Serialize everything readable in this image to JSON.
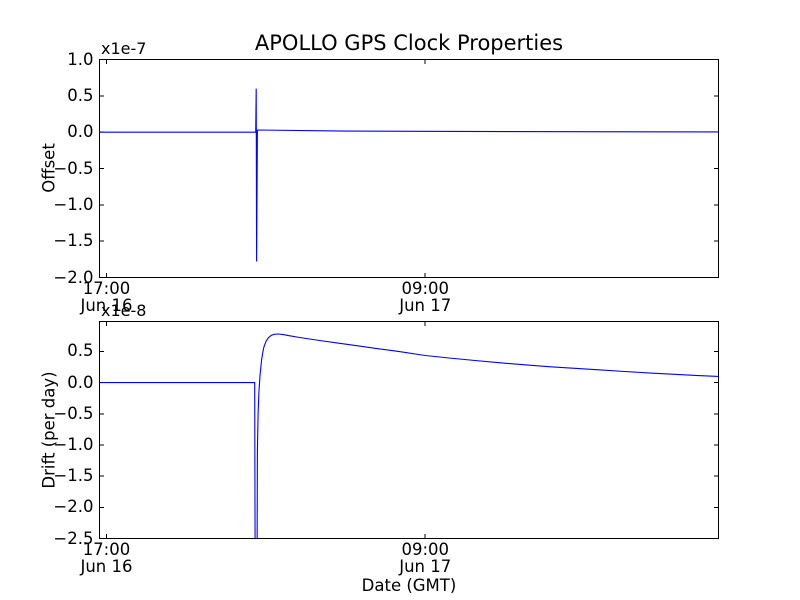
{
  "figure": {
    "background": "#ffffff",
    "axis_color": "#000000"
  },
  "chart_data": [
    {
      "type": "line",
      "title": "APOLLO GPS Clock Properties",
      "ylabel": "Offset",
      "xlabel": "",
      "scale_label": "x1e-7",
      "line_color": "#0000ff",
      "grid": false,
      "legend": "none",
      "ylim": [
        -2.0,
        1.0
      ],
      "xlim_hours": [
        -0.35,
        30.72
      ],
      "x_unit": "hours since 17:00 Jun 16 (GMT)",
      "y_ticks": [
        {
          "v": 1.0,
          "label": "1.0"
        },
        {
          "v": 0.5,
          "label": "0.5"
        },
        {
          "v": 0.0,
          "label": "0.0"
        },
        {
          "v": -0.5,
          "label": "−0.5"
        },
        {
          "v": -1.0,
          "label": "−1.0"
        },
        {
          "v": -1.5,
          "label": "−1.5"
        },
        {
          "v": -2.0,
          "label": "−2.0"
        }
      ],
      "x_ticks": [
        {
          "hour": 0,
          "time": "17:00",
          "date": "Jun 16"
        },
        {
          "hour": 16,
          "time": "09:00",
          "date": "Jun 17"
        }
      ],
      "series": [
        {
          "name": "offset",
          "points": [
            [
              -0.35,
              0
            ],
            [
              7.49,
              0
            ],
            [
              7.515,
              0.6
            ],
            [
              7.535,
              -1.78
            ],
            [
              7.575,
              0.03
            ],
            [
              12,
              0.015
            ],
            [
              20,
              0.008
            ],
            [
              30.72,
              0.004
            ]
          ]
        }
      ]
    },
    {
      "type": "line",
      "title": "",
      "ylabel": "Drift (per day)",
      "xlabel": "Date (GMT)",
      "scale_label": "x1e-8",
      "line_color": "#0000ff",
      "grid": false,
      "legend": "none",
      "ylim": [
        -2.5,
        0.98
      ],
      "xlim_hours": [
        -0.35,
        30.72
      ],
      "x_unit": "hours since 17:00 Jun 16 (GMT)",
      "y_ticks": [
        {
          "v": 0.5,
          "label": "0.5"
        },
        {
          "v": 0.0,
          "label": "0.0"
        },
        {
          "v": -0.5,
          "label": "−0.5"
        },
        {
          "v": -1.0,
          "label": "−1.0"
        },
        {
          "v": -1.5,
          "label": "−1.5"
        },
        {
          "v": -2.0,
          "label": "−2.0"
        },
        {
          "v": -2.5,
          "label": "−2.5"
        }
      ],
      "x_ticks": [
        {
          "hour": 0,
          "time": "17:00",
          "date": "Jun 16"
        },
        {
          "hour": 16,
          "time": "09:00",
          "date": "Jun 17"
        }
      ],
      "series": [
        {
          "name": "drift",
          "points": [
            [
              -0.35,
              0
            ],
            [
              7.44,
              0
            ],
            [
              7.46,
              -2.7
            ],
            [
              7.56,
              -2.7
            ],
            [
              7.575,
              -1.1
            ],
            [
              7.61,
              -0.5
            ],
            [
              7.65,
              -0.15
            ],
            [
              7.71,
              0.13
            ],
            [
              7.79,
              0.38
            ],
            [
              7.89,
              0.56
            ],
            [
              8.0,
              0.66
            ],
            [
              8.13,
              0.72
            ],
            [
              8.27,
              0.757
            ],
            [
              8.42,
              0.775
            ],
            [
              8.62,
              0.78
            ],
            [
              8.87,
              0.77
            ],
            [
              9.2,
              0.75
            ],
            [
              9.7,
              0.724
            ],
            [
              10.7,
              0.675
            ],
            [
              11.7,
              0.63
            ],
            [
              12.7,
              0.585
            ],
            [
              13.7,
              0.54
            ],
            [
              14.7,
              0.498
            ],
            [
              16.0,
              0.435
            ],
            [
              17.2,
              0.395
            ],
            [
              18.5,
              0.355
            ],
            [
              19.7,
              0.32
            ],
            [
              21.0,
              0.285
            ],
            [
              22.2,
              0.255
            ],
            [
              23.5,
              0.23
            ],
            [
              24.7,
              0.205
            ],
            [
              26.0,
              0.178
            ],
            [
              27.2,
              0.155
            ],
            [
              28.5,
              0.133
            ],
            [
              29.7,
              0.113
            ],
            [
              30.72,
              0.1
            ]
          ]
        }
      ]
    }
  ]
}
